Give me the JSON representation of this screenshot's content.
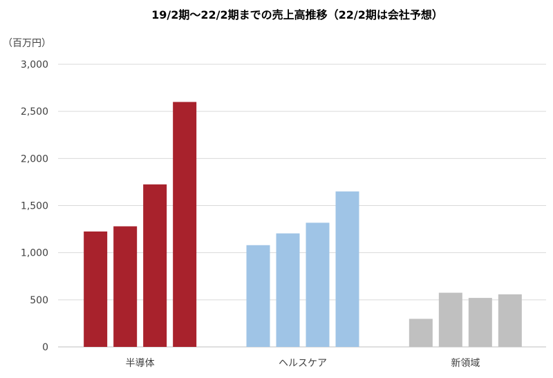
{
  "chart_data": {
    "type": "bar",
    "title": "19/2期〜22/2期までの売上高推移（22/2期は会社予想）",
    "unit_label": "（百万円）",
    "categories": [
      "半導体",
      "ヘルスケア",
      "新領域"
    ],
    "series": [
      {
        "values": [
          1225,
          1080,
          298
        ]
      },
      {
        "values": [
          1280,
          1205,
          575
        ]
      },
      {
        "values": [
          1725,
          1318,
          520
        ]
      },
      {
        "values": [
          2600,
          1650,
          558
        ]
      }
    ],
    "category_colors": [
      "#a8222c",
      "#9fc4e6",
      "#c0c0c0"
    ],
    "ylim": [
      0,
      3000
    ],
    "yticks": [
      0,
      500,
      1000,
      1500,
      2000,
      2500,
      3000
    ],
    "ytick_labels": [
      "0",
      "500",
      "1,000",
      "1,500",
      "2,000",
      "2,500",
      "3,000"
    ],
    "grid": true,
    "gridline_color": "#d9d9d9",
    "axis_color": "#bfbfbf"
  }
}
